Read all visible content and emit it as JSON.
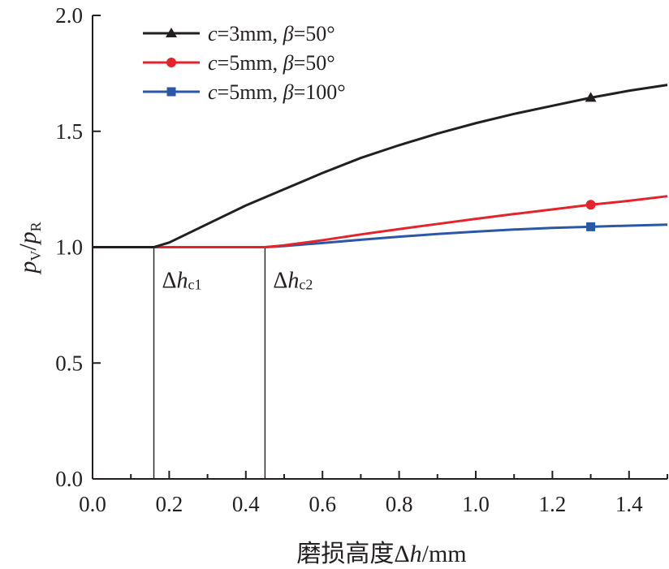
{
  "chart_data": {
    "type": "line",
    "xlabel_cjk": "磨损高度",
    "xlabel_delta": "Δ",
    "xlabel_var": "h",
    "xlabel_unit": "/mm",
    "ylabel_num": "p",
    "ylabel_num_sub": "V",
    "ylabel_den": "p",
    "ylabel_den_sub": "R",
    "xlim": [
      0,
      1.5
    ],
    "ylim": [
      0,
      2.0
    ],
    "xticks": [
      "0.0",
      "0.2",
      "0.4",
      "0.6",
      "0.8",
      "1.0",
      "1.2",
      "1.4"
    ],
    "yticks": [
      "0.0",
      "0.5",
      "1.0",
      "1.5",
      "2.0"
    ],
    "series": [
      {
        "name": "c=3mm, β=50°",
        "name_parts": {
          "var1": "c",
          "eq1": "=3mm, ",
          "var2": "β",
          "eq2": "=50°"
        },
        "color": "#231f20",
        "marker": "triangle",
        "marker_x": 1.3,
        "x": [
          0,
          0.16,
          0.2,
          0.3,
          0.4,
          0.5,
          0.6,
          0.7,
          0.8,
          0.9,
          1.0,
          1.1,
          1.2,
          1.3,
          1.4,
          1.5
        ],
        "y": [
          1.0,
          1.0,
          1.02,
          1.1,
          1.18,
          1.25,
          1.32,
          1.385,
          1.44,
          1.49,
          1.535,
          1.575,
          1.61,
          1.645,
          1.675,
          1.7
        ]
      },
      {
        "name": "c=5mm, β=50°",
        "name_parts": {
          "var1": "c",
          "eq1": "=5mm, ",
          "var2": "β",
          "eq2": "=50°"
        },
        "color": "#e5232b",
        "marker": "circle",
        "marker_x": 1.3,
        "x": [
          0,
          0.45,
          0.5,
          0.6,
          0.7,
          0.8,
          0.9,
          1.0,
          1.1,
          1.2,
          1.3,
          1.4,
          1.5
        ],
        "y": [
          1.0,
          1.0,
          1.008,
          1.03,
          1.055,
          1.078,
          1.1,
          1.122,
          1.143,
          1.163,
          1.183,
          1.2,
          1.22
        ]
      },
      {
        "name": "c=5mm, β=100°",
        "name_parts": {
          "var1": "c",
          "eq1": "=5mm, ",
          "var2": "β",
          "eq2": "=100°"
        },
        "color": "#2a58a6",
        "marker": "square",
        "marker_x": 1.3,
        "x": [
          0,
          0.45,
          0.5,
          0.6,
          0.7,
          0.8,
          0.9,
          1.0,
          1.1,
          1.2,
          1.3,
          1.4,
          1.5
        ],
        "y": [
          1.0,
          1.0,
          1.005,
          1.018,
          1.032,
          1.045,
          1.057,
          1.067,
          1.076,
          1.083,
          1.088,
          1.093,
          1.097
        ]
      }
    ],
    "annotations": [
      {
        "x": 0.16,
        "main": "Δ",
        "var": "h",
        "sub": "c1"
      },
      {
        "x": 0.45,
        "main": "Δ",
        "var": "h",
        "sub": "c2"
      }
    ],
    "legend_position": "top-left",
    "grid": false
  }
}
